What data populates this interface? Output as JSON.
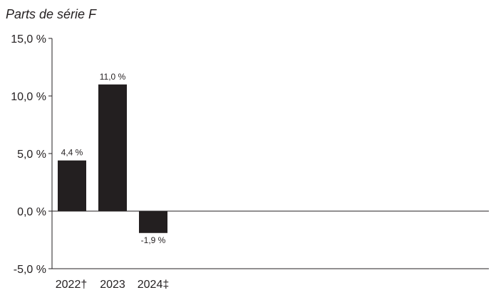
{
  "chart_data": {
    "type": "bar",
    "title": "Parts de série F",
    "categories": [
      "2022†",
      "2023",
      "2024‡"
    ],
    "values": [
      4.4,
      11.0,
      -1.9
    ],
    "data_labels": [
      "4,4 %",
      "11,0 %",
      "-1,9 %"
    ],
    "ylim": [
      -5,
      15
    ],
    "yticks": [
      15,
      10,
      5,
      0,
      -5
    ],
    "ytick_labels": [
      "15,0 %",
      "10,0 %",
      "5,0 %",
      "0,0 %",
      "-5,0 %"
    ],
    "xlabel": "",
    "ylabel": "",
    "grid": false,
    "bar_color": "#231f20"
  }
}
